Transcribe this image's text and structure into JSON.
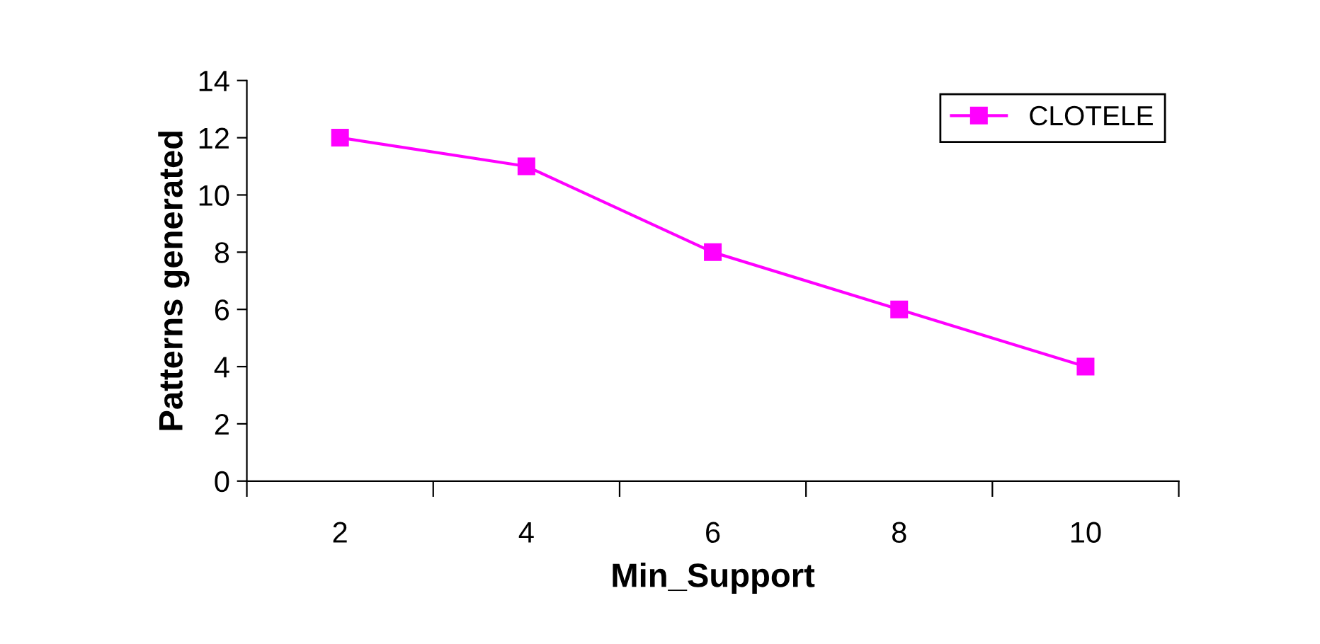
{
  "chart_data": {
    "type": "line",
    "xlabel": "Min_Support",
    "ylabel": "Patterns generated",
    "categories": [
      "2",
      "4",
      "6",
      "8",
      "10"
    ],
    "series": [
      {
        "name": "CLOTELE",
        "color": "#ff00ff",
        "values": [
          12,
          11,
          8,
          6,
          4
        ]
      }
    ],
    "ylim": [
      0,
      14
    ],
    "yticks": [
      0,
      2,
      4,
      6,
      8,
      10,
      12,
      14
    ],
    "grid": false,
    "legend": "top right",
    "marker": "square",
    "line_style": "solid"
  }
}
